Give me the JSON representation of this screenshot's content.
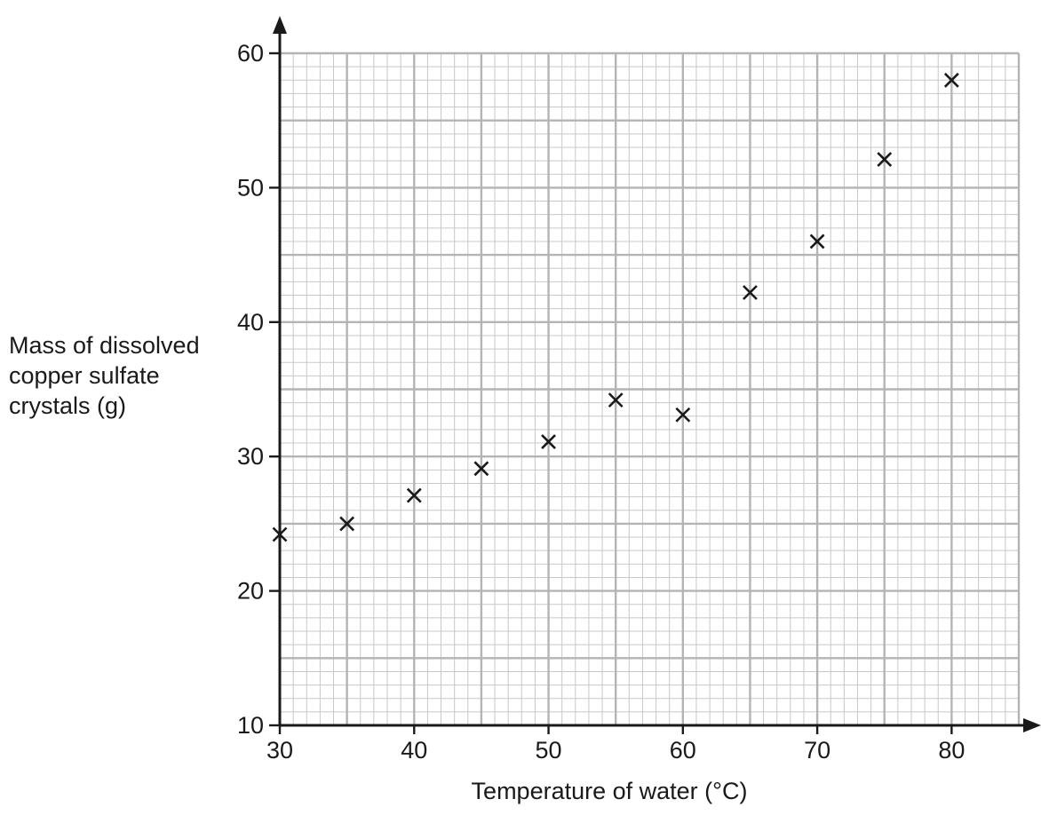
{
  "chart_data": {
    "type": "scatter",
    "title": "",
    "xlabel": "Temperature of water (°C)",
    "ylabel_lines": [
      "Mass of dissolved",
      "copper sulfate",
      "crystals (g)"
    ],
    "xlim": [
      30,
      85
    ],
    "ylim": [
      10,
      60
    ],
    "x_ticks": [
      30,
      40,
      50,
      60,
      70,
      80
    ],
    "y_ticks": [
      10,
      20,
      30,
      40,
      50,
      60
    ],
    "minor_step": 1,
    "major_step_x": 5,
    "major_step_y": 5,
    "grid": true,
    "marker": "x",
    "points": [
      {
        "x": 30,
        "y": 24.2
      },
      {
        "x": 35,
        "y": 25
      },
      {
        "x": 40,
        "y": 27.1
      },
      {
        "x": 45,
        "y": 29.1
      },
      {
        "x": 50,
        "y": 31.1
      },
      {
        "x": 55,
        "y": 34.2
      },
      {
        "x": 60,
        "y": 33.1
      },
      {
        "x": 65,
        "y": 42.2
      },
      {
        "x": 70,
        "y": 46
      },
      {
        "x": 75,
        "y": 52.1
      },
      {
        "x": 80,
        "y": 58
      }
    ],
    "colors": {
      "minor_grid": "#c8c8c8",
      "major_grid": "#b4b4b4",
      "axis": "#1a1a1a",
      "marker": "#1a1a1a"
    }
  }
}
